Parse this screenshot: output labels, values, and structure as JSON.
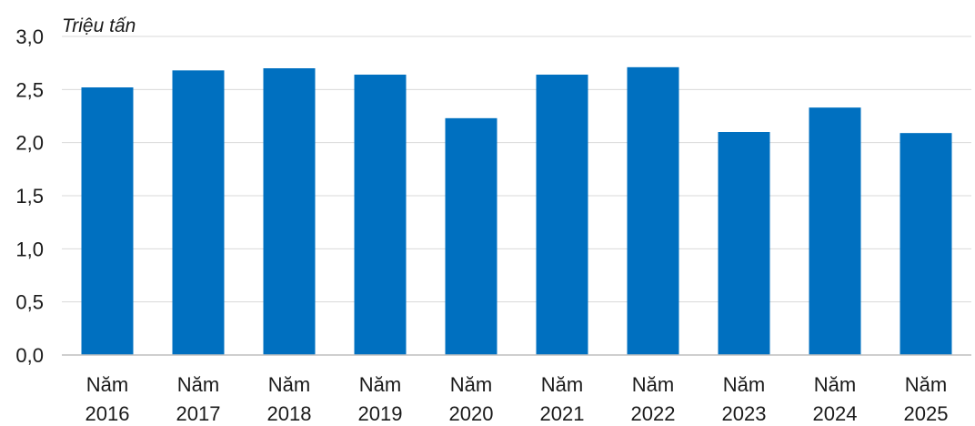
{
  "chart_data": {
    "type": "bar",
    "ylabel": "Triệu tấn",
    "categories": [
      [
        "Năm",
        "2016"
      ],
      [
        "Năm",
        "2017"
      ],
      [
        "Năm",
        "2018"
      ],
      [
        "Năm",
        "2019"
      ],
      [
        "Năm",
        "2020"
      ],
      [
        "Năm",
        "2021"
      ],
      [
        "Năm",
        "2022"
      ],
      [
        "Năm",
        "2023"
      ],
      [
        "Năm",
        "2024"
      ],
      [
        "Năm",
        "2025"
      ]
    ],
    "values": [
      2.52,
      2.68,
      2.7,
      2.64,
      2.23,
      2.64,
      2.71,
      2.1,
      2.33,
      2.09
    ],
    "ylim": [
      0,
      3.0
    ],
    "yticks": [
      "0,0",
      "0,5",
      "1,0",
      "1,5",
      "2,0",
      "2,5",
      "3,0"
    ],
    "grid": true,
    "legend": "none",
    "colors": {
      "bar": "#0070C0",
      "grid": "#d9d9d9",
      "axis": "#bfbfbf",
      "text": "#1a1a1a"
    }
  }
}
